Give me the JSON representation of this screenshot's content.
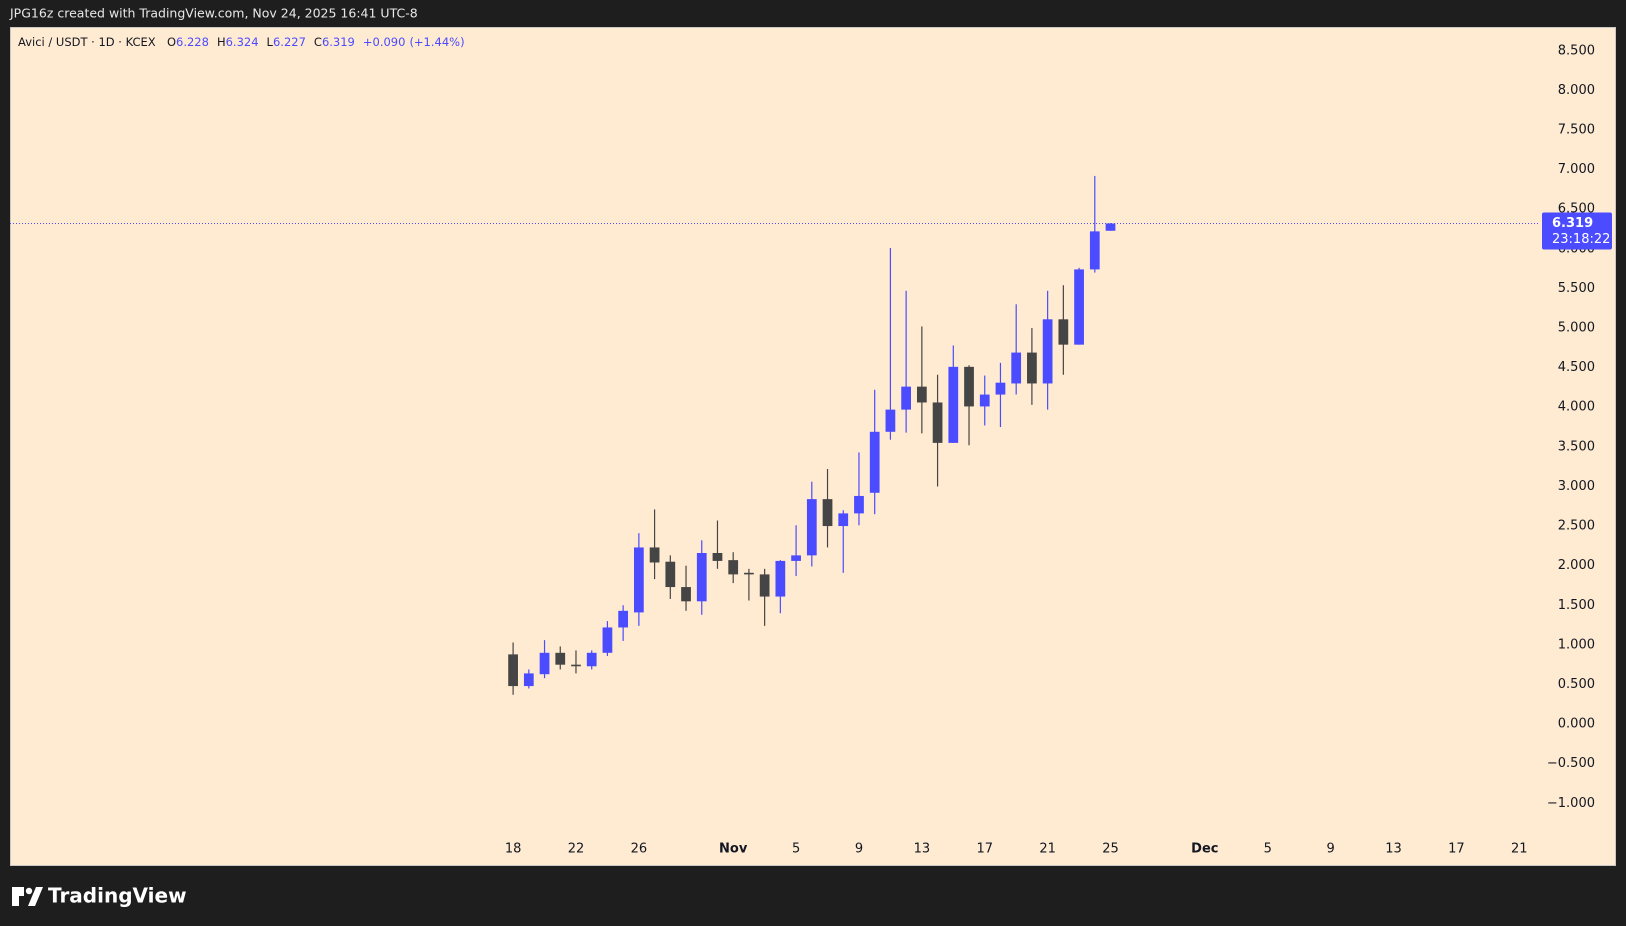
{
  "header": "JPG16z created with TradingView.com, Nov 24, 2025 16:41 UTC-8",
  "footer_logo": "TradingView",
  "chart_data": {
    "type": "candlestick",
    "legend": {
      "symbol": "Avici / USDT · 1D · KCEX",
      "labels": [
        "O",
        "H",
        "L",
        "C"
      ],
      "change": {
        "value": 0.09,
        "label": "+0.090"
      },
      "change_pct": {
        "value": 1.44,
        "label": "(+1.44%)"
      }
    },
    "x": [
      "2025-10-18",
      "2025-10-19",
      "2025-10-20",
      "2025-10-21",
      "2025-10-22",
      "2025-10-23",
      "2025-10-24",
      "2025-10-25",
      "2025-10-26",
      "2025-10-27",
      "2025-10-28",
      "2025-10-29",
      "2025-10-30",
      "2025-10-31",
      "2025-11-01",
      "2025-11-02",
      "2025-11-03",
      "2025-11-04",
      "2025-11-05",
      "2025-11-06",
      "2025-11-07",
      "2025-11-08",
      "2025-11-09",
      "2025-11-10",
      "2025-11-11",
      "2025-11-12",
      "2025-11-13",
      "2025-11-14",
      "2025-11-15",
      "2025-11-16",
      "2025-11-17",
      "2025-11-18",
      "2025-11-19",
      "2025-11-20",
      "2025-11-21",
      "2025-11-22",
      "2025-11-23",
      "2025-11-24",
      "2025-11-25"
    ],
    "open": [
      0.88,
      0.48,
      0.63,
      0.9,
      0.75,
      0.73,
      0.9,
      1.22,
      1.41,
      2.23,
      2.05,
      1.73,
      1.55,
      2.16,
      2.07,
      1.91,
      1.89,
      1.61,
      2.06,
      2.13,
      2.84,
      2.5,
      2.66,
      2.92,
      3.69,
      3.97,
      4.26,
      4.06,
      3.55,
      4.51,
      4.01,
      4.16,
      4.3,
      4.69,
      4.3,
      5.11,
      4.79,
      5.74,
      6.228
    ],
    "high": [
      1.03,
      0.69,
      1.06,
      0.98,
      0.93,
      0.93,
      1.3,
      1.5,
      2.41,
      2.71,
      2.13,
      2.0,
      2.32,
      2.57,
      2.17,
      1.96,
      1.96,
      2.07,
      2.51,
      3.06,
      3.22,
      2.7,
      3.43,
      4.22,
      6.01,
      5.47,
      5.02,
      4.41,
      4.78,
      4.53,
      4.4,
      4.56,
      5.3,
      5.0,
      5.47,
      5.54,
      5.76,
      6.92,
      6.324
    ],
    "low": [
      0.37,
      0.45,
      0.58,
      0.69,
      0.64,
      0.69,
      0.86,
      1.05,
      1.24,
      1.83,
      1.58,
      1.43,
      1.38,
      1.96,
      1.78,
      1.56,
      1.24,
      1.4,
      1.87,
      1.99,
      2.23,
      1.91,
      2.51,
      2.65,
      3.59,
      3.68,
      3.67,
      3.0,
      3.55,
      3.52,
      3.77,
      3.75,
      4.16,
      4.03,
      3.97,
      4.41,
      4.79,
      5.7,
      6.227
    ],
    "close": [
      0.48,
      0.64,
      0.9,
      0.75,
      0.73,
      0.9,
      1.22,
      1.43,
      2.23,
      2.04,
      1.73,
      1.55,
      2.16,
      2.06,
      1.89,
      1.89,
      1.61,
      2.06,
      2.13,
      2.84,
      2.5,
      2.66,
      2.88,
      3.69,
      3.97,
      4.26,
      4.06,
      3.55,
      4.51,
      4.01,
      4.16,
      4.31,
      4.69,
      4.3,
      5.11,
      4.79,
      5.74,
      6.22,
      6.319
    ],
    "up_color": "#4b4bff",
    "down_color": "#454545",
    "ylim": [
      -1.4,
      8.8
    ],
    "yticks": [
      {
        "value": -1,
        "label": "−1.000"
      },
      {
        "value": -0.5,
        "label": "−0.500"
      },
      {
        "value": 0,
        "label": "0.000"
      },
      {
        "value": 0.5,
        "label": "0.500"
      },
      {
        "value": 1,
        "label": "1.000"
      },
      {
        "value": 1.5,
        "label": "1.500"
      },
      {
        "value": 2,
        "label": "2.000"
      },
      {
        "value": 2.5,
        "label": "2.500"
      },
      {
        "value": 3,
        "label": "3.000"
      },
      {
        "value": 3.5,
        "label": "3.500"
      },
      {
        "value": 4,
        "label": "4.000"
      },
      {
        "value": 4.5,
        "label": "4.500"
      },
      {
        "value": 5,
        "label": "5.000"
      },
      {
        "value": 5.5,
        "label": "5.500"
      },
      {
        "value": 6,
        "label": "6.000"
      },
      {
        "value": 6.5,
        "label": "6.500"
      },
      {
        "value": 7,
        "label": "7.000"
      },
      {
        "value": 7.5,
        "label": "7.500"
      },
      {
        "value": 8,
        "label": "8.000"
      },
      {
        "value": 8.5,
        "label": "8.500"
      }
    ],
    "xlim": [
      "2025-09-16",
      "2025-12-22"
    ],
    "xticks": [
      {
        "value": "2025-10-18",
        "label": "18"
      },
      {
        "value": "2025-10-22",
        "label": "22"
      },
      {
        "value": "2025-10-26",
        "label": "26"
      },
      {
        "value": "2025-11-01",
        "label": "Nov"
      },
      {
        "value": "2025-11-05",
        "label": "5"
      },
      {
        "value": "2025-11-09",
        "label": "9"
      },
      {
        "value": "2025-11-13",
        "label": "13"
      },
      {
        "value": "2025-11-17",
        "label": "17"
      },
      {
        "value": "2025-11-21",
        "label": "21"
      },
      {
        "value": "2025-11-25",
        "label": "25"
      },
      {
        "value": "2025-12-01",
        "label": "Dec"
      },
      {
        "value": "2025-12-05",
        "label": "5"
      },
      {
        "value": "2025-12-09",
        "label": "9"
      },
      {
        "value": "2025-12-13",
        "label": "13"
      },
      {
        "value": "2025-12-17",
        "label": "17"
      },
      {
        "value": "2025-12-21",
        "label": "21"
      }
    ],
    "last_price_line": true,
    "countdown": "23:18:22"
  }
}
